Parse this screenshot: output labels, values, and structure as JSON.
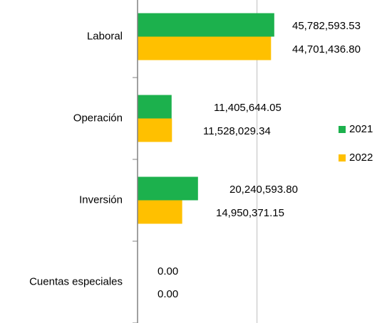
{
  "chart_data": {
    "type": "hbar",
    "categories": [
      "Laboral",
      "Operación",
      "Inversión",
      "Cuentas especiales"
    ],
    "series": [
      {
        "name": "2021",
        "color": "#1cb14d",
        "values": [
          45782593.53,
          11405644.05,
          20240593.8,
          0
        ],
        "value_labels": [
          "45,782,593.53",
          "11,405,644.05",
          "20,240,593.80",
          "0.00"
        ]
      },
      {
        "name": "2022",
        "color": "#ffc000",
        "values": [
          44701436.8,
          11528029.34,
          14950371.15,
          0
        ],
        "value_labels": [
          "44,701,436.80",
          "11,528,029.34",
          "14,950,371.15",
          "0.00"
        ]
      }
    ],
    "xlim": [
      0,
      50000000
    ],
    "xgrid": [
      40000000
    ],
    "legend": "right"
  }
}
